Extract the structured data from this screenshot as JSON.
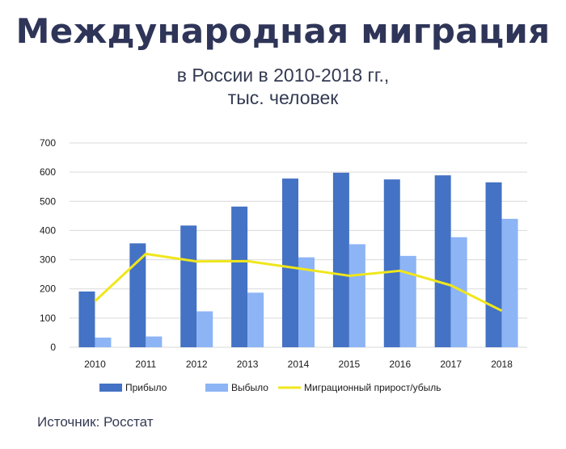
{
  "title": "Международная миграция",
  "subtitle_line1": "в России в 2010-2018 гг.,",
  "subtitle_line2": "тыс. человек",
  "source": "Источник: Росстат",
  "colors": {
    "arrived": "#4472c4",
    "departed": "#8db4f5",
    "net": "#f0e61c",
    "grid": "#d9d9d9",
    "axis_text": "#1a1a1a",
    "title": "#2e3558"
  },
  "chart_data": {
    "type": "bar",
    "categories": [
      "2010",
      "2011",
      "2012",
      "2013",
      "2014",
      "2015",
      "2016",
      "2017",
      "2018"
    ],
    "series": [
      {
        "name": "Прибыло",
        "type": "bar",
        "values": [
          191,
          356,
          417,
          482,
          578,
          598,
          575,
          589,
          565
        ]
      },
      {
        "name": "Выбыло",
        "type": "bar",
        "values": [
          33,
          37,
          123,
          187,
          308,
          353,
          313,
          377,
          440
        ]
      },
      {
        "name": "Миграционный прирост/убыль",
        "type": "line",
        "values": [
          158,
          320,
          294,
          295,
          270,
          245,
          262,
          212,
          125
        ]
      }
    ],
    "ylim": [
      0,
      700
    ],
    "yticks": [
      0,
      100,
      200,
      300,
      400,
      500,
      600,
      700
    ],
    "grid": true,
    "legend_position": "bottom"
  }
}
